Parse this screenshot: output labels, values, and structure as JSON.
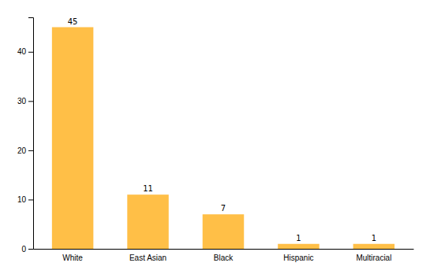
{
  "chart_data": {
    "type": "bar",
    "categories": [
      "White",
      "East Asian",
      "Black",
      "Hispanic",
      "Multiracial"
    ],
    "values": [
      45,
      11,
      7,
      1,
      1
    ],
    "color": "#FFBF47",
    "ylim": [
      0,
      47
    ],
    "yticks": [
      0,
      10,
      20,
      30,
      40
    ],
    "grid": false,
    "data_labels": true
  }
}
